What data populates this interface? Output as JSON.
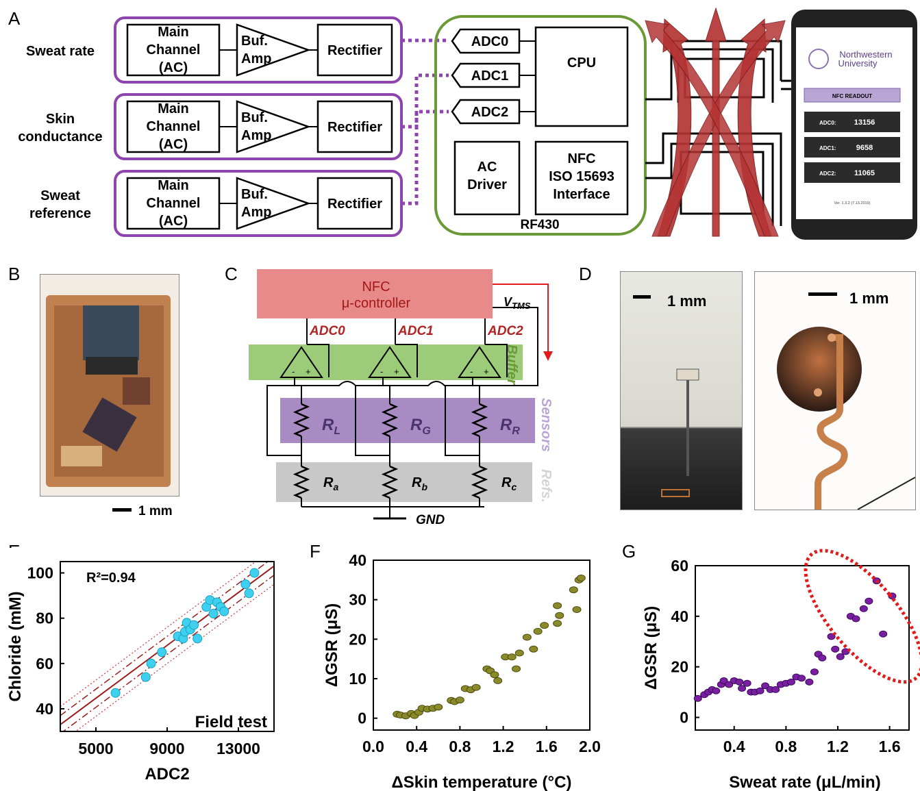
{
  "panel_labels": {
    "a": "A",
    "b": "B",
    "c": "C",
    "d": "D",
    "e": "E",
    "f": "F",
    "g": "G"
  },
  "panel_a": {
    "rows": [
      {
        "label_lines": [
          "Sweat rate"
        ],
        "main_lines": [
          "Main",
          "Channel",
          "(AC)"
        ],
        "buf_lines": [
          "Buf.",
          "Amp"
        ],
        "rectifier": "Rectifier"
      },
      {
        "label_lines": [
          "Skin",
          "conductance"
        ],
        "main_lines": [
          "Main",
          "Channel",
          "(AC)"
        ],
        "buf_lines": [
          "Buf.",
          "Amp"
        ],
        "rectifier": "Rectifier"
      },
      {
        "label_lines": [
          "Sweat",
          "reference"
        ],
        "main_lines": [
          "Main",
          "Channel",
          "(AC)"
        ],
        "buf_lines": [
          "Buf.",
          "Amp"
        ],
        "rectifier": "Rectifier"
      }
    ],
    "adcs": [
      "ADC0",
      "ADC1",
      "ADC2"
    ],
    "cpu": "CPU",
    "ac_driver_lines": [
      "AC",
      "Driver"
    ],
    "nfc_lines": [
      "NFC",
      "ISO 15693",
      "Interface"
    ],
    "chip": "RF430",
    "phone": {
      "university_lines": [
        "Northwestern",
        "University"
      ],
      "readout_title": "NFC READOUT",
      "readouts": [
        {
          "label": "ADC0:",
          "value": "13156"
        },
        {
          "label": "ADC1:",
          "value": "9658"
        },
        {
          "label": "ADC2:",
          "value": "11065"
        }
      ],
      "version": "Ver. 1.3.2 (7.13.2019)"
    },
    "colors": {
      "purple": "#8e44ad",
      "green": "#6a9a35",
      "arrow": "#b53434"
    }
  },
  "panel_b": {
    "scale": "1 mm"
  },
  "panel_c": {
    "controller_lines": [
      "NFC",
      "μ-controller"
    ],
    "vtms": "V",
    "vtms_sub": "TMS",
    "adcs": [
      "ADC0",
      "ADC1",
      "ADC2"
    ],
    "buffer": "Buffer",
    "sensors": "Sensors",
    "refs": "Refs.",
    "sensor_resistors": [
      {
        "main": "R",
        "sub": "L"
      },
      {
        "main": "R",
        "sub": "G"
      },
      {
        "main": "R",
        "sub": "R"
      }
    ],
    "ref_resistors": [
      {
        "main": "R",
        "sub": "a"
      },
      {
        "main": "R",
        "sub": "b"
      },
      {
        "main": "R",
        "sub": "c"
      }
    ],
    "gnd": "GND",
    "colors": {
      "controller": "#e88a8a",
      "buffer": "#9ccc7a",
      "sensors": "#a98bc4",
      "refs": "#c8c8c8",
      "adc": "#b22222"
    }
  },
  "panel_d": {
    "scale_left": "1 mm",
    "scale_right": "1 mm"
  },
  "chart_data": [
    {
      "type": "scatter",
      "panel": "E",
      "xlabel": "ADC2",
      "ylabel": "Chloride (mM)",
      "xlim": [
        3000,
        15000
      ],
      "ylim": [
        30,
        105
      ],
      "xticks": [
        5000,
        9000,
        13000
      ],
      "yticks": [
        40,
        60,
        80,
        100
      ],
      "annotation": "R²=0.94",
      "corner_label": "Field test",
      "points": [
        {
          "x": 6100,
          "y": 47
        },
        {
          "x": 7800,
          "y": 54
        },
        {
          "x": 8100,
          "y": 60
        },
        {
          "x": 8700,
          "y": 65
        },
        {
          "x": 9600,
          "y": 72
        },
        {
          "x": 9900,
          "y": 71
        },
        {
          "x": 10000,
          "y": 74
        },
        {
          "x": 10100,
          "y": 78
        },
        {
          "x": 10300,
          "y": 75
        },
        {
          "x": 10500,
          "y": 77
        },
        {
          "x": 10700,
          "y": 71
        },
        {
          "x": 11200,
          "y": 85
        },
        {
          "x": 11400,
          "y": 88
        },
        {
          "x": 11600,
          "y": 82
        },
        {
          "x": 11800,
          "y": 87
        },
        {
          "x": 12000,
          "y": 85
        },
        {
          "x": 12200,
          "y": 83
        },
        {
          "x": 13400,
          "y": 95
        },
        {
          "x": 13600,
          "y": 91
        },
        {
          "x": 13900,
          "y": 100
        }
      ],
      "fit": {
        "x": [
          3000,
          15000
        ],
        "y": [
          33,
          103
        ]
      },
      "colors": {
        "point": "#3fd0f0",
        "fit": "#9b1b1b"
      }
    },
    {
      "type": "scatter",
      "panel": "F",
      "xlabel": "ΔSkin temperature (°C)",
      "ylabel": "ΔGSR (μS)",
      "xlim": [
        0,
        2
      ],
      "ylim": [
        -3,
        40
      ],
      "xticks": [
        0.0,
        0.4,
        0.8,
        1.2,
        1.6,
        2.0
      ],
      "xtick_labels": [
        "0.0",
        "0.4",
        "0.8",
        "1.2",
        "1.6",
        "2.0"
      ],
      "yticks": [
        0,
        10,
        20,
        30,
        40
      ],
      "points": [
        {
          "x": 0.22,
          "y": 1
        },
        {
          "x": 0.25,
          "y": 0.8
        },
        {
          "x": 0.3,
          "y": 0.6
        },
        {
          "x": 0.35,
          "y": 1.2
        },
        {
          "x": 0.38,
          "y": 0.7
        },
        {
          "x": 0.42,
          "y": 1.5
        },
        {
          "x": 0.45,
          "y": 2.5
        },
        {
          "x": 0.5,
          "y": 2.3
        },
        {
          "x": 0.55,
          "y": 2.5
        },
        {
          "x": 0.6,
          "y": 2.8
        },
        {
          "x": 0.72,
          "y": 4.5
        },
        {
          "x": 0.75,
          "y": 4.2
        },
        {
          "x": 0.8,
          "y": 4.6
        },
        {
          "x": 0.85,
          "y": 7.5
        },
        {
          "x": 0.9,
          "y": 7.2
        },
        {
          "x": 0.95,
          "y": 7.8
        },
        {
          "x": 1.05,
          "y": 12.5
        },
        {
          "x": 1.08,
          "y": 12
        },
        {
          "x": 1.12,
          "y": 11
        },
        {
          "x": 1.15,
          "y": 9.5
        },
        {
          "x": 1.22,
          "y": 15.5
        },
        {
          "x": 1.28,
          "y": 15.5
        },
        {
          "x": 1.32,
          "y": 12.5
        },
        {
          "x": 1.35,
          "y": 16.5
        },
        {
          "x": 1.42,
          "y": 20.5
        },
        {
          "x": 1.48,
          "y": 17.5
        },
        {
          "x": 1.52,
          "y": 22
        },
        {
          "x": 1.58,
          "y": 23.5
        },
        {
          "x": 1.7,
          "y": 28.5
        },
        {
          "x": 1.7,
          "y": 24
        },
        {
          "x": 1.72,
          "y": 26
        },
        {
          "x": 1.85,
          "y": 32.5
        },
        {
          "x": 1.88,
          "y": 27.5
        },
        {
          "x": 1.9,
          "y": 35
        },
        {
          "x": 1.92,
          "y": 35.5
        }
      ],
      "colors": {
        "point": "#8a8a2a"
      }
    },
    {
      "type": "scatter",
      "panel": "G",
      "xlabel": "Sweat rate (μL/min)",
      "ylabel": "ΔGSR (μS)",
      "xlim": [
        0.1,
        1.75
      ],
      "ylim": [
        -5,
        60
      ],
      "xticks": [
        0.4,
        0.8,
        1.2,
        1.6
      ],
      "xtick_labels": [
        "0.4",
        "0.8",
        "1.2",
        "1.6"
      ],
      "yticks": [
        0,
        20,
        40,
        60
      ],
      "points": [
        {
          "x": 0.12,
          "y": 7.5
        },
        {
          "x": 0.17,
          "y": 9
        },
        {
          "x": 0.2,
          "y": 10
        },
        {
          "x": 0.23,
          "y": 11
        },
        {
          "x": 0.26,
          "y": 10.5
        },
        {
          "x": 0.3,
          "y": 13
        },
        {
          "x": 0.32,
          "y": 14.5
        },
        {
          "x": 0.36,
          "y": 13
        },
        {
          "x": 0.4,
          "y": 14.5
        },
        {
          "x": 0.44,
          "y": 14
        },
        {
          "x": 0.46,
          "y": 11.5
        },
        {
          "x": 0.5,
          "y": 13.5
        },
        {
          "x": 0.53,
          "y": 10
        },
        {
          "x": 0.56,
          "y": 10
        },
        {
          "x": 0.6,
          "y": 10.5
        },
        {
          "x": 0.64,
          "y": 12.5
        },
        {
          "x": 0.68,
          "y": 11
        },
        {
          "x": 0.72,
          "y": 11
        },
        {
          "x": 0.76,
          "y": 13
        },
        {
          "x": 0.8,
          "y": 13.5
        },
        {
          "x": 0.84,
          "y": 14
        },
        {
          "x": 0.88,
          "y": 16
        },
        {
          "x": 0.92,
          "y": 15.5
        },
        {
          "x": 0.98,
          "y": 14
        },
        {
          "x": 1.02,
          "y": 18
        },
        {
          "x": 1.05,
          "y": 25
        },
        {
          "x": 1.15,
          "y": 32
        },
        {
          "x": 1.18,
          "y": 27
        },
        {
          "x": 1.22,
          "y": 24
        },
        {
          "x": 1.26,
          "y": 26
        },
        {
          "x": 1.3,
          "y": 40
        },
        {
          "x": 1.34,
          "y": 39
        },
        {
          "x": 1.4,
          "y": 43
        },
        {
          "x": 1.44,
          "y": 46
        },
        {
          "x": 1.5,
          "y": 54
        },
        {
          "x": 1.55,
          "y": 33
        },
        {
          "x": 1.62,
          "y": 48
        },
        {
          "x": 1.08,
          "y": 23.5
        }
      ],
      "highlight_ellipse": {
        "cx": 1.4,
        "cy": 40,
        "rx_data": 0.42,
        "ry_data": 20
      },
      "colors": {
        "point": "#7a1fa2",
        "highlight": "#e11b1b"
      }
    }
  ]
}
